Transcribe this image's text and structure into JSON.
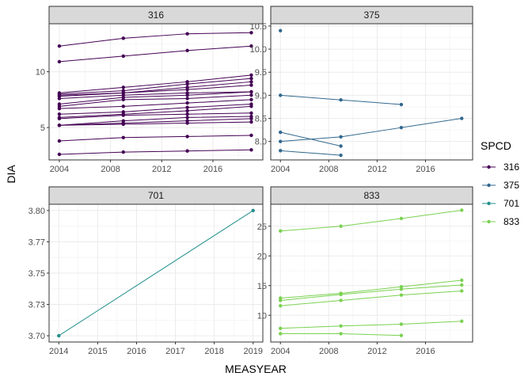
{
  "chart_data": {
    "type": "line",
    "xlabel": "MEASYEAR",
    "ylabel": "DIA",
    "legend": {
      "title": "SPCD",
      "placement": "right"
    },
    "panels": [
      {
        "strip": "316",
        "color": "#440154",
        "xlim": [
          2003.2,
          2019.9
        ],
        "ylim": [
          2.1,
          14.3
        ],
        "xticks": [
          2004,
          2008,
          2012,
          2016
        ],
        "yticks": [
          5,
          10
        ],
        "series": [
          {
            "x": [
              2004,
              2009,
              2014,
              2019
            ],
            "y": [
              12.3,
              13.0,
              13.4,
              13.5
            ]
          },
          {
            "x": [
              2004,
              2009,
              2014,
              2019
            ],
            "y": [
              10.9,
              11.4,
              11.9,
              12.3
            ]
          },
          {
            "x": [
              2004,
              2009,
              2014,
              2019
            ],
            "y": [
              8.1,
              8.6,
              9.1,
              9.7
            ]
          },
          {
            "x": [
              2004,
              2009,
              2014,
              2019
            ],
            "y": [
              8.0,
              8.3,
              8.9,
              9.4
            ]
          },
          {
            "x": [
              2004,
              2009,
              2014,
              2019
            ],
            "y": [
              7.9,
              8.1,
              8.6,
              9.1
            ]
          },
          {
            "x": [
              2004,
              2009,
              2014,
              2019
            ],
            "y": [
              7.8,
              8.1,
              8.4,
              8.8
            ]
          },
          {
            "x": [
              2004,
              2009,
              2014,
              2019
            ],
            "y": [
              7.6,
              7.9,
              8.1,
              8.2
            ]
          },
          {
            "x": [
              2004,
              2009,
              2014,
              2019
            ],
            "y": [
              7.1,
              7.7,
              7.9,
              8.2
            ]
          },
          {
            "x": [
              2004,
              2009,
              2014,
              2019
            ],
            "y": [
              6.9,
              7.5,
              7.6,
              7.9
            ]
          },
          {
            "x": [
              2004,
              2009,
              2014,
              2019
            ],
            "y": [
              6.7,
              6.9,
              7.2,
              7.5
            ]
          },
          {
            "x": [
              2004,
              2009,
              2014,
              2019
            ],
            "y": [
              6.2,
              6.4,
              6.8,
              7.1
            ]
          },
          {
            "x": [
              2004,
              2009,
              2014,
              2019
            ],
            "y": [
              5.9,
              6.2,
              6.5,
              6.9
            ]
          },
          {
            "x": [
              2004,
              2009,
              2014,
              2019
            ],
            "y": [
              5.8,
              6.1,
              6.2,
              6.3
            ]
          },
          {
            "x": [
              2004,
              2009,
              2014,
              2019
            ],
            "y": [
              5.2,
              5.6,
              5.9,
              6.0
            ]
          },
          {
            "x": [
              2004,
              2009,
              2014,
              2019
            ],
            "y": [
              5.2,
              5.4,
              5.6,
              5.8
            ]
          },
          {
            "x": [
              2004,
              2009,
              2014,
              2019
            ],
            "y": [
              5.2,
              5.3,
              5.4,
              5.5
            ]
          },
          {
            "x": [
              2004,
              2009,
              2014,
              2019
            ],
            "y": [
              3.8,
              4.1,
              4.2,
              4.3
            ]
          },
          {
            "x": [
              2004,
              2009,
              2014,
              2019
            ],
            "y": [
              2.6,
              2.8,
              2.9,
              3.0
            ]
          }
        ]
      },
      {
        "strip": "375",
        "color": "#31688E",
        "xlim": [
          2003.2,
          2019.9
        ],
        "ylim": [
          7.6,
          10.55
        ],
        "xticks": [
          2004,
          2008,
          2012,
          2016
        ],
        "yticks": [
          8.0,
          8.5,
          9.0,
          9.5,
          10.0,
          10.5
        ],
        "series": [
          {
            "x": [
              2004
            ],
            "y": [
              10.4
            ]
          },
          {
            "x": [
              2004,
              2009,
              2014
            ],
            "y": [
              9.0,
              8.9,
              8.8
            ]
          },
          {
            "x": [
              2004,
              2009
            ],
            "y": [
              8.2,
              7.9
            ]
          },
          {
            "x": [
              2004,
              2009,
              2014,
              2019
            ],
            "y": [
              8.0,
              8.1,
              8.3,
              8.5
            ]
          },
          {
            "x": [
              2004,
              2009
            ],
            "y": [
              7.8,
              7.7
            ]
          }
        ]
      },
      {
        "strip": "701",
        "color": "#21908C",
        "xlim": [
          2013.75,
          2019.25
        ],
        "ylim": [
          3.695,
          3.805
        ],
        "xticks": [
          2014,
          2015,
          2016,
          2017,
          2018,
          2019
        ],
        "yticks": [
          3.7,
          3.725,
          3.75,
          3.775,
          3.8
        ],
        "series": [
          {
            "x": [
              2014,
              2019
            ],
            "y": [
              3.7,
              3.8
            ]
          }
        ]
      },
      {
        "strip": "833",
        "color": "#7AD151",
        "xlim": [
          2003.2,
          2019.9
        ],
        "ylim": [
          5.5,
          28.7
        ],
        "xticks": [
          2004,
          2008,
          2012,
          2016
        ],
        "yticks": [
          10,
          15,
          20,
          25
        ],
        "series": [
          {
            "x": [
              2004,
              2009,
              2014,
              2019
            ],
            "y": [
              24.2,
              25.0,
              26.3,
              27.7
            ]
          },
          {
            "x": [
              2004,
              2009,
              2014,
              2019
            ],
            "y": [
              12.9,
              13.7,
              14.8,
              15.9
            ]
          },
          {
            "x": [
              2004,
              2009,
              2014,
              2019
            ],
            "y": [
              12.5,
              13.5,
              14.4,
              15.1
            ]
          },
          {
            "x": [
              2004,
              2009,
              2014,
              2019
            ],
            "y": [
              11.6,
              12.5,
              13.4,
              14.1
            ]
          },
          {
            "x": [
              2004,
              2009,
              2014,
              2019
            ],
            "y": [
              7.8,
              8.2,
              8.5,
              9.0
            ]
          },
          {
            "x": [
              2004,
              2009,
              2014
            ],
            "y": [
              6.9,
              6.9,
              6.6
            ]
          }
        ]
      }
    ],
    "legend_entries": [
      {
        "label": "316",
        "color": "#440154"
      },
      {
        "label": "375",
        "color": "#31688E"
      },
      {
        "label": "701",
        "color": "#21908C"
      },
      {
        "label": "833",
        "color": "#7AD151"
      }
    ]
  }
}
